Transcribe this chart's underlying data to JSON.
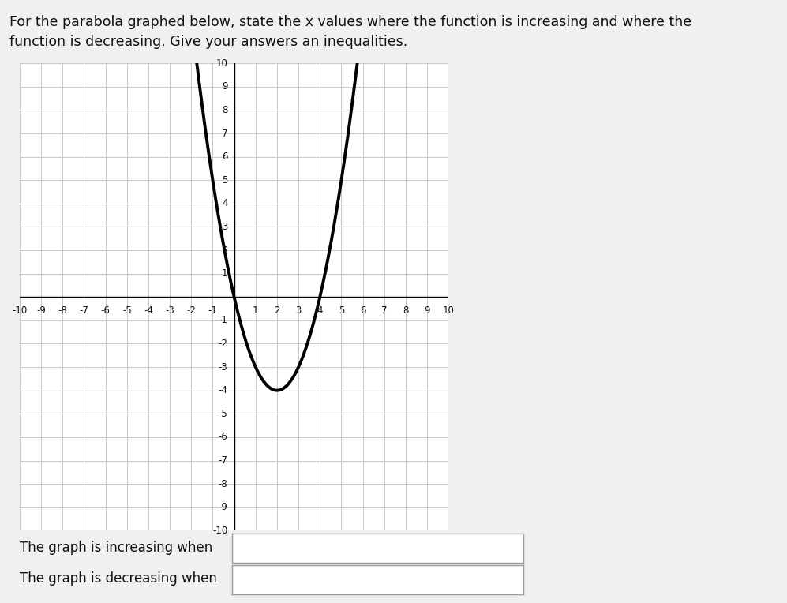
{
  "title_line1": "For the parabola graphed below, state the x values where the function is increasing and where the",
  "title_line2": "function is decreasing. Give your answers an inequalities.",
  "parabola_vertex_x": 2,
  "parabola_vertex_y": -4,
  "parabola_a": 1,
  "x_range": [
    -10,
    10
  ],
  "y_range": [
    -10,
    10
  ],
  "grid_color": "#c8c8c8",
  "axis_color": "#000000",
  "curve_color": "#000000",
  "curve_linewidth": 2.8,
  "background_color": "#f0f0f0",
  "plot_bg_color": "#ffffff",
  "label_increasing": "The graph is increasing when",
  "label_decreasing": "The graph is decreasing when",
  "font_size_title": 12.5,
  "font_size_labels": 12,
  "tick_fontsize": 8.5
}
